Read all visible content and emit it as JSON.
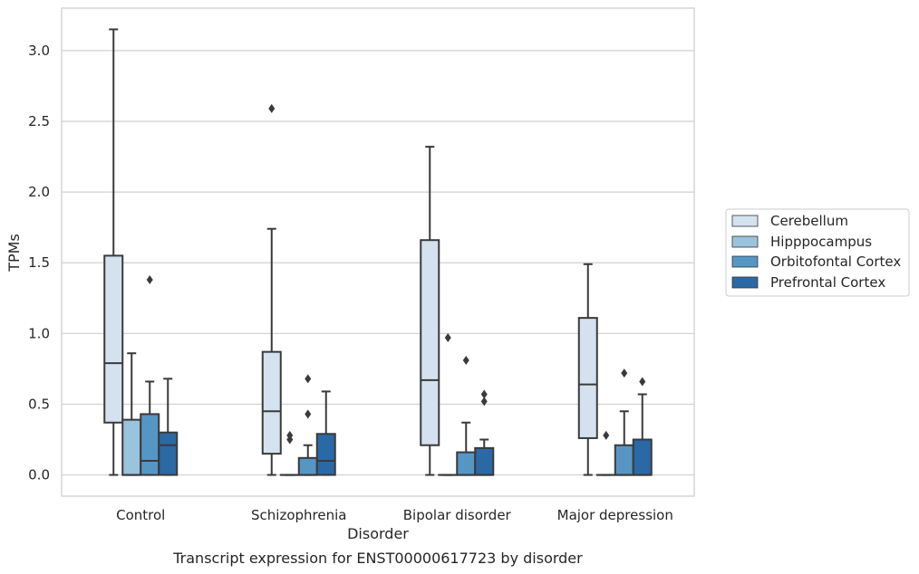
{
  "chart_data": {
    "type": "box",
    "caption": "Transcript expression for ENST00000617723 by disorder",
    "xlabel": "Disorder",
    "ylabel": "TPMs",
    "ylim": [
      -0.15,
      3.3
    ],
    "yticks": [
      0.0,
      0.5,
      1.0,
      1.5,
      2.0,
      2.5,
      3.0
    ],
    "ytick_labels": [
      "0.0",
      "0.5",
      "1.0",
      "1.5",
      "2.0",
      "2.5",
      "3.0"
    ],
    "grid": "horizontal",
    "legend_position": "right",
    "categories": [
      "Control",
      "Schizophrenia",
      "Bipolar disorder",
      "Major depression"
    ],
    "series": [
      {
        "name": "Cerebellum",
        "color": "#d4e2f0",
        "boxes": [
          {
            "whisker_low": 0.0,
            "q1": 0.37,
            "median": 0.79,
            "q3": 1.55,
            "whisker_high": 3.15,
            "outliers": []
          },
          {
            "whisker_low": 0.0,
            "q1": 0.15,
            "median": 0.45,
            "q3": 0.87,
            "whisker_high": 1.74,
            "outliers": [
              2.59
            ]
          },
          {
            "whisker_low": 0.0,
            "q1": 0.21,
            "median": 0.67,
            "q3": 1.66,
            "whisker_high": 2.32,
            "outliers": []
          },
          {
            "whisker_low": 0.0,
            "q1": 0.26,
            "median": 0.64,
            "q3": 1.11,
            "whisker_high": 1.49,
            "outliers": []
          }
        ]
      },
      {
        "name": "Hipppocampus",
        "color": "#9ac3dd",
        "boxes": [
          {
            "whisker_low": 0.0,
            "q1": 0.0,
            "median": 0.0,
            "q3": 0.39,
            "whisker_high": 0.86,
            "outliers": []
          },
          {
            "whisker_low": 0.0,
            "q1": 0.0,
            "median": 0.0,
            "q3": 0.0,
            "whisker_high": 0.0,
            "outliers": [
              0.25,
              0.28
            ]
          },
          {
            "whisker_low": 0.0,
            "q1": 0.0,
            "median": 0.0,
            "q3": 0.0,
            "whisker_high": 0.0,
            "outliers": [
              0.97
            ]
          },
          {
            "whisker_low": 0.0,
            "q1": 0.0,
            "median": 0.0,
            "q3": 0.0,
            "whisker_high": 0.0,
            "outliers": [
              0.28
            ]
          }
        ]
      },
      {
        "name": "Orbitofontal Cortex",
        "color": "#5696c4",
        "boxes": [
          {
            "whisker_low": 0.0,
            "q1": 0.0,
            "median": 0.1,
            "q3": 0.43,
            "whisker_high": 0.66,
            "outliers": [
              1.38
            ]
          },
          {
            "whisker_low": 0.0,
            "q1": 0.0,
            "median": 0.0,
            "q3": 0.12,
            "whisker_high": 0.21,
            "outliers": [
              0.43,
              0.68
            ]
          },
          {
            "whisker_low": 0.0,
            "q1": 0.0,
            "median": 0.0,
            "q3": 0.16,
            "whisker_high": 0.37,
            "outliers": [
              0.81
            ]
          },
          {
            "whisker_low": 0.0,
            "q1": 0.0,
            "median": 0.0,
            "q3": 0.21,
            "whisker_high": 0.45,
            "outliers": [
              0.72
            ]
          }
        ]
      },
      {
        "name": "Prefrontal Cortex",
        "color": "#2b68a6",
        "boxes": [
          {
            "whisker_low": 0.0,
            "q1": 0.0,
            "median": 0.21,
            "q3": 0.3,
            "whisker_high": 0.68,
            "outliers": []
          },
          {
            "whisker_low": 0.0,
            "q1": 0.0,
            "median": 0.1,
            "q3": 0.29,
            "whisker_high": 0.59,
            "outliers": []
          },
          {
            "whisker_low": 0.0,
            "q1": 0.0,
            "median": 0.0,
            "q3": 0.19,
            "whisker_high": 0.25,
            "outliers": [
              0.52,
              0.57
            ]
          },
          {
            "whisker_low": 0.0,
            "q1": 0.0,
            "median": 0.0,
            "q3": 0.25,
            "whisker_high": 0.57,
            "outliers": [
              0.66
            ]
          }
        ]
      }
    ]
  }
}
